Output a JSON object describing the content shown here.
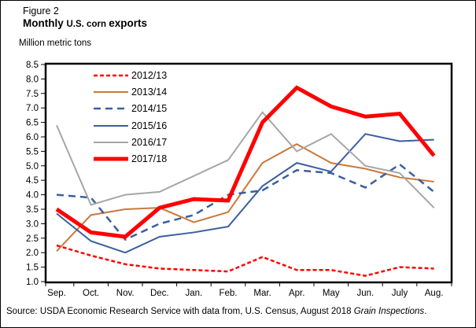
{
  "figure": {
    "label": "Figure 2",
    "title_part1": "Monthly ",
    "title_part2": "U.S. corn ",
    "title_part3": "exports",
    "units_label": "Million metric tons",
    "source_prefix": "Source: USDA Economic Research Service with data from, U.S. Census, August 2018 ",
    "source_italic": "Grain Inspections",
    "source_suffix": "."
  },
  "chart_data": {
    "type": "line",
    "title": "Monthly U.S. corn exports",
    "ylabel": "Million metric tons",
    "xlabel": "",
    "ylim": [
      1.0,
      8.5
    ],
    "ytick_step": 0.5,
    "grid": false,
    "legend_position": "upper-left-inside",
    "frame_color": "#000000",
    "categories": [
      "Sep.",
      "Oct.",
      "Nov.",
      "Dec.",
      "Jan.",
      "Feb.",
      "Mar.",
      "Apr.",
      "May",
      "Jun.",
      "July",
      "Aug."
    ],
    "series": [
      {
        "name": "2012/13",
        "color": "#FF0000",
        "dash": "5 3",
        "width": 2.5,
        "values": [
          2.25,
          1.9,
          1.6,
          1.45,
          1.4,
          1.35,
          1.85,
          1.4,
          1.4,
          1.2,
          1.5,
          1.45
        ]
      },
      {
        "name": "2013/14",
        "color": "#C9793A",
        "dash": null,
        "width": 2,
        "values": [
          2.05,
          3.3,
          3.5,
          3.55,
          3.05,
          3.4,
          5.1,
          5.75,
          5.1,
          4.9,
          4.6,
          4.45
        ]
      },
      {
        "name": "2014/15",
        "color": "#3A5F9E",
        "dash": "9 6",
        "width": 2.5,
        "values": [
          4.0,
          3.9,
          2.45,
          3.0,
          3.3,
          4.0,
          4.15,
          4.85,
          4.75,
          4.25,
          5.05,
          4.1
        ]
      },
      {
        "name": "2015/16",
        "color": "#3A5F9E",
        "dash": null,
        "width": 2,
        "values": [
          3.35,
          2.4,
          2.0,
          2.55,
          2.7,
          2.9,
          4.3,
          5.1,
          4.8,
          6.1,
          5.85,
          5.9
        ]
      },
      {
        "name": "2016/17",
        "color": "#A6A6A6",
        "dash": null,
        "width": 2,
        "values": [
          6.4,
          3.65,
          4.0,
          4.1,
          4.65,
          5.2,
          6.85,
          5.5,
          6.1,
          5.0,
          4.75,
          3.55
        ]
      },
      {
        "name": "2017/18",
        "color": "#FF0000",
        "dash": null,
        "width": 5,
        "values": [
          3.5,
          2.7,
          2.55,
          3.55,
          3.85,
          3.8,
          6.5,
          7.7,
          7.05,
          6.7,
          6.8,
          5.35
        ]
      }
    ]
  }
}
